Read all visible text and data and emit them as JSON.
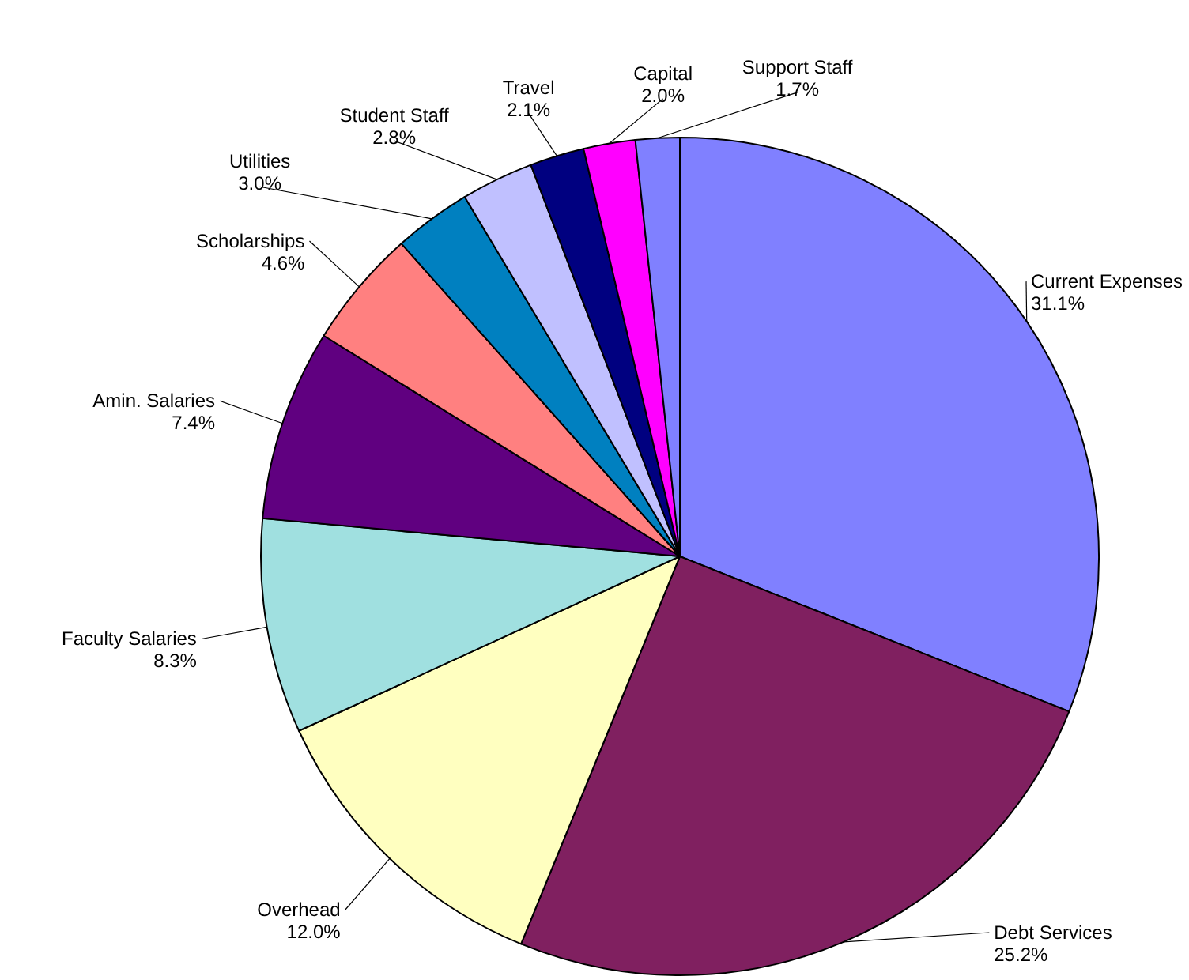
{
  "chart_data": {
    "type": "pie",
    "categories": [
      "Current Expenses",
      "Debt Services",
      "Overhead",
      "Faculty Salaries",
      "Amin. Salaries",
      "Scholarships",
      "Utilities",
      "Student Staff",
      "Travel",
      "Capital",
      "Support Staff"
    ],
    "values": [
      31.1,
      25.2,
      12.0,
      8.3,
      7.4,
      4.6,
      3.0,
      2.8,
      2.1,
      2.0,
      1.7
    ],
    "value_labels": [
      "31.1%",
      "25.2%",
      "12.0%",
      "8.3%",
      "7.4%",
      "4.6%",
      "3.0%",
      "2.8%",
      "2.1%",
      "2.0%",
      "1.7%"
    ],
    "colors": [
      "#8080ff",
      "#802060",
      "#ffffc0",
      "#a0e0e0",
      "#600080",
      "#ff8080",
      "#0080c0",
      "#c0c0ff",
      "#000080",
      "#ff00ff",
      "#8080ff"
    ]
  }
}
